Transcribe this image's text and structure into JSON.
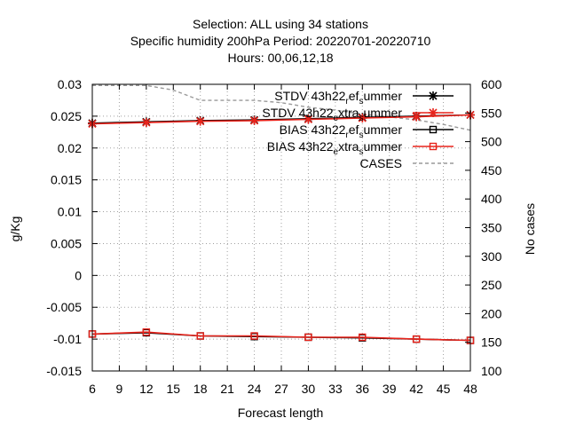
{
  "chart_data": {
    "type": "line",
    "title_lines": [
      "Selection: ALL using    34 stations",
      "Specific humidity 200hPa   Period: 20220701-20220710",
      "Hours:  00,06,12,18"
    ],
    "xlabel": "Forecast length",
    "ylabel": "g/Kg",
    "y2label": "No cases",
    "xlim": [
      6,
      48
    ],
    "ylim": [
      -0.015,
      0.03
    ],
    "y2lim": [
      100,
      600
    ],
    "x_ticks": [
      6,
      9,
      12,
      15,
      18,
      21,
      24,
      27,
      30,
      33,
      36,
      39,
      42,
      45,
      48
    ],
    "y_ticks": [
      -0.015,
      -0.01,
      -0.005,
      0,
      0.005,
      0.01,
      0.015,
      0.02,
      0.025,
      0.03
    ],
    "y_tick_labels": [
      "-0.015",
      "-0.01",
      "-0.005",
      "0",
      "0.005",
      "0.01",
      "0.015",
      "0.02",
      "0.025",
      "0.03"
    ],
    "y2_ticks": [
      100,
      150,
      200,
      250,
      300,
      350,
      400,
      450,
      500,
      550,
      600
    ],
    "grid": true,
    "legend_position": "top-right",
    "series": [
      {
        "name": "STDV 43h22_ref_summer",
        "legend_parts": [
          "STDV 43h22",
          "r",
          "ef",
          "s",
          "ummer"
        ],
        "color": "#000000",
        "marker": "star",
        "axis": "y",
        "x": [
          6,
          12,
          18,
          24,
          30,
          36,
          42,
          48
        ],
        "y": [
          0.0239,
          0.0241,
          0.0243,
          0.0244,
          0.0246,
          0.0248,
          0.025,
          0.0252
        ]
      },
      {
        "name": "STDV 43h22_extra_summer",
        "legend_parts": [
          "STDV 43h22",
          "e",
          "xtra",
          "s",
          "ummer"
        ],
        "color": "#e8231b",
        "marker": "star",
        "axis": "y",
        "x": [
          6,
          12,
          18,
          24,
          30,
          36,
          42,
          48
        ],
        "y": [
          0.0238,
          0.024,
          0.0242,
          0.0243,
          0.0245,
          0.0247,
          0.0249,
          0.0252
        ]
      },
      {
        "name": "BIAS 43h22_ref_summer",
        "legend_parts": [
          "BIAS 43h22",
          "r",
          "ef",
          "s",
          "ummer"
        ],
        "color": "#000000",
        "marker": "square",
        "axis": "y",
        "x": [
          6,
          12,
          18,
          24,
          30,
          36,
          42,
          48
        ],
        "y": [
          -0.0092,
          -0.009,
          -0.0095,
          -0.0096,
          -0.0097,
          -0.0098,
          -0.01,
          -0.0102
        ]
      },
      {
        "name": "BIAS 43h22_extra_summer",
        "legend_parts": [
          "BIAS 43h22",
          "e",
          "xtra",
          "s",
          "ummer"
        ],
        "color": "#e8231b",
        "marker": "square",
        "axis": "y",
        "x": [
          6,
          12,
          18,
          24,
          30,
          36,
          42,
          48
        ],
        "y": [
          -0.0092,
          -0.0089,
          -0.0095,
          -0.0095,
          -0.0097,
          -0.0097,
          -0.01,
          -0.0102
        ]
      },
      {
        "name": "CASES",
        "legend_parts": [
          "CASES",
          "",
          "",
          "",
          ""
        ],
        "color": "#999999",
        "marker": "none",
        "dashed": true,
        "axis": "y2",
        "x": [
          6,
          9,
          12,
          15,
          18,
          21,
          24,
          27,
          30,
          33,
          36,
          39,
          42,
          45,
          48
        ],
        "y": [
          598,
          598,
          598,
          590,
          572,
          572,
          572,
          568,
          560,
          555,
          548,
          543,
          538,
          530,
          520
        ]
      }
    ]
  }
}
